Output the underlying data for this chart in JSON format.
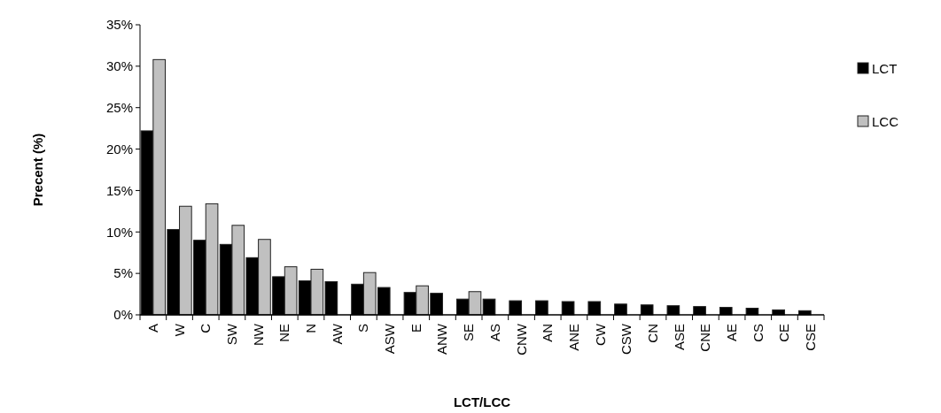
{
  "chart_data": {
    "type": "bar",
    "xlabel": "LCT/LCC",
    "ylabel": "Precent (%)",
    "categories": [
      "A",
      "W",
      "C",
      "SW",
      "NW",
      "NE",
      "N",
      "AW",
      "S",
      "ASW",
      "E",
      "ANW",
      "SE",
      "AS",
      "CNW",
      "AN",
      "ANE",
      "CW",
      "CSW",
      "CN",
      "ASE",
      "CNE",
      "AE",
      "CS",
      "CE",
      "CSE"
    ],
    "series": [
      {
        "name": "LCT",
        "color": "#000000",
        "values": [
          22.2,
          10.3,
          9.0,
          8.5,
          6.9,
          4.6,
          4.1,
          4.0,
          3.7,
          3.3,
          2.7,
          2.6,
          1.9,
          1.9,
          1.7,
          1.7,
          1.6,
          1.6,
          1.3,
          1.2,
          1.1,
          1.0,
          0.9,
          0.8,
          0.6,
          0.5
        ]
      },
      {
        "name": "LCC",
        "color": "#c0c0c0",
        "values": [
          30.8,
          13.1,
          13.4,
          10.8,
          9.1,
          5.8,
          5.5,
          null,
          5.1,
          null,
          3.5,
          null,
          2.8,
          null,
          null,
          null,
          null,
          null,
          null,
          null,
          null,
          null,
          null,
          null,
          null,
          null
        ]
      }
    ],
    "ylim": [
      0,
      35
    ],
    "yticks": [
      {
        "value": 0,
        "label": "0%"
      },
      {
        "value": 5,
        "label": "5%"
      },
      {
        "value": 10,
        "label": "10%"
      },
      {
        "value": 15,
        "label": "15%"
      },
      {
        "value": 20,
        "label": "20%"
      },
      {
        "value": 25,
        "label": "25%"
      },
      {
        "value": 30,
        "label": "30%"
      },
      {
        "value": 35,
        "label": "35%"
      }
    ],
    "grid": false,
    "legend": "top right"
  }
}
